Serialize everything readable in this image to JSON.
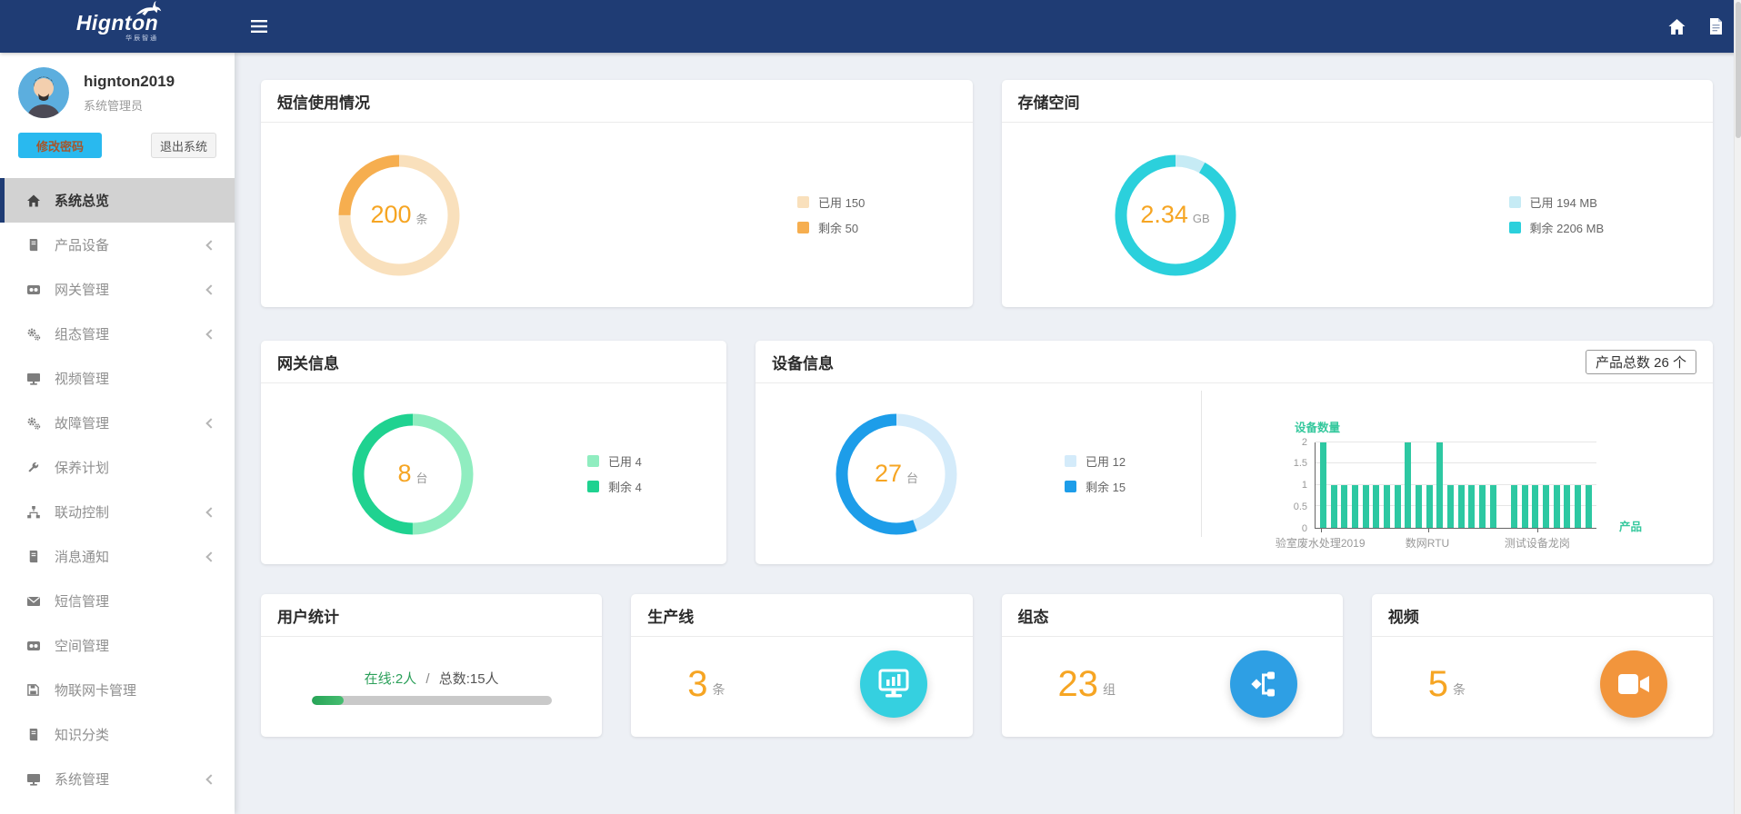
{
  "logo": {
    "name": "Hignton",
    "tagline": "华辰智通"
  },
  "navbar": {},
  "user": {
    "name": "hignton2019",
    "role": "系统管理员",
    "change_password_label": "修改密码",
    "logout_label": "退出系统"
  },
  "sidebar": {
    "items": [
      {
        "label": "系统总览",
        "active": true
      },
      {
        "label": "产品设备",
        "chevron": true
      },
      {
        "label": "网关管理",
        "chevron": true
      },
      {
        "label": "组态管理",
        "chevron": true
      },
      {
        "label": "视频管理"
      },
      {
        "label": "故障管理",
        "chevron": true
      },
      {
        "label": "保养计划"
      },
      {
        "label": "联动控制",
        "chevron": true
      },
      {
        "label": "消息通知",
        "chevron": true
      },
      {
        "label": "短信管理"
      },
      {
        "label": "空间管理"
      },
      {
        "label": "物联网卡管理"
      },
      {
        "label": "知识分类"
      },
      {
        "label": "系统管理",
        "chevron": true
      }
    ]
  },
  "cards": {
    "sms": {
      "title": "短信使用情况",
      "center_value": "200",
      "center_unit": "条",
      "legend": [
        {
          "label": "已用 150"
        },
        {
          "label": "剩余 50"
        }
      ]
    },
    "storage": {
      "title": "存储空间",
      "center_value": "2.34",
      "center_unit": "GB",
      "legend": [
        {
          "label": "已用 194 MB"
        },
        {
          "label": "剩余 2206 MB"
        }
      ]
    },
    "gateway": {
      "title": "网关信息",
      "center_value": "8",
      "center_unit": "台",
      "legend": [
        {
          "label": "已用 4"
        },
        {
          "label": "剩余 4"
        }
      ]
    },
    "device": {
      "title": "设备信息",
      "badge": "产品总数 26 个",
      "center_value": "27",
      "center_unit": "台",
      "legend": [
        {
          "label": "已用 12"
        },
        {
          "label": "剩余 15"
        }
      ]
    },
    "users": {
      "title": "用户统计",
      "online": "在线:2人",
      "separator": "/",
      "total": "总数:15人",
      "progress_pct": 13.3
    },
    "production": {
      "title": "生产线",
      "value": "3",
      "unit": "条"
    },
    "scada": {
      "title": "组态",
      "value": "23",
      "unit": "组"
    },
    "video": {
      "title": "视频",
      "value": "5",
      "unit": "条"
    }
  },
  "colors": {
    "accent_orange": "#f6a523",
    "navbar_blue": "#1f3c74",
    "production_icon_bg": "#35d0e0",
    "scada_icon_bg": "#2e9fe4",
    "video_icon_bg": "#f2953c",
    "progress_green": "#2ca05a"
  },
  "chart_data": [
    {
      "id": "sms",
      "type": "donut",
      "title": "短信使用情况",
      "center_value": 200,
      "unit": "条",
      "series": [
        {
          "name": "已用",
          "value": 150,
          "color": "#f9e0bc"
        },
        {
          "name": "剩余",
          "value": 50,
          "color": "#f6ae4f"
        }
      ]
    },
    {
      "id": "storage",
      "type": "donut",
      "title": "存储空间",
      "center_value": 2.34,
      "unit": "GB",
      "series": [
        {
          "name": "已用",
          "value": 194,
          "color": "#c6ebf5"
        },
        {
          "name": "剩余",
          "value": 2206,
          "color": "#2bd0dc"
        }
      ]
    },
    {
      "id": "gateway",
      "type": "donut",
      "title": "网关信息",
      "center_value": 8,
      "unit": "台",
      "series": [
        {
          "name": "已用",
          "value": 4,
          "color": "#90edc0"
        },
        {
          "name": "剩余",
          "value": 4,
          "color": "#1fd290"
        }
      ]
    },
    {
      "id": "device",
      "type": "donut",
      "title": "设备信息",
      "center_value": 27,
      "unit": "台",
      "series": [
        {
          "name": "已用",
          "value": 12,
          "color": "#d4ebfa"
        },
        {
          "name": "剩余",
          "value": 15,
          "color": "#1d9de9"
        }
      ]
    },
    {
      "id": "products",
      "type": "bar",
      "title": "设备数量",
      "xlabel": "产品",
      "ylim": [
        0,
        2
      ],
      "yticks": [
        "2",
        "1.5",
        "1",
        "0.5",
        "0"
      ],
      "x_tick_labels": [
        "验室废水处理2019",
        "数网RTU",
        "测试设备龙岗"
      ],
      "bar_color": "#2dc8a2",
      "values": [
        2,
        1,
        1,
        1,
        1,
        1,
        1,
        1,
        2,
        1,
        1,
        2,
        1,
        1,
        1,
        1,
        1,
        0,
        1,
        1,
        1,
        1,
        1,
        1,
        1,
        1
      ]
    }
  ]
}
